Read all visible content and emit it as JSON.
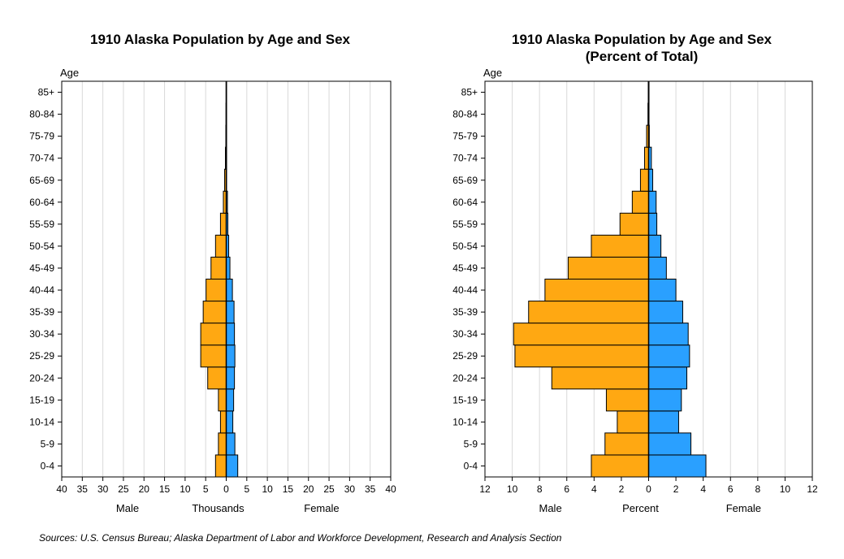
{
  "source_note": "Sources: U.S. Census Bureau; Alaska Department of Labor and Workforce Development, Research and Analysis Section",
  "colors": {
    "male": "#FFA812",
    "female": "#2AA0FF",
    "grid": "#D9D9D9"
  },
  "chart_data": [
    {
      "type": "bar",
      "orientation": "horizontal-pyramid",
      "title": "1910 Alaska Population by Age and Sex",
      "title_line2": "",
      "ylabel": "Age",
      "xlabel_left": "Male",
      "xlabel_center": "Thousands",
      "xlabel_right": "Female",
      "xlim": [
        -40,
        40
      ],
      "xticks": [
        40,
        35,
        30,
        25,
        20,
        15,
        10,
        5,
        0,
        5,
        10,
        15,
        20,
        25,
        30,
        35,
        40
      ],
      "categories": [
        "0-4",
        "5-9",
        "10-14",
        "15-19",
        "20-24",
        "25-29",
        "30-34",
        "35-39",
        "40-44",
        "45-49",
        "50-54",
        "55-59",
        "60-64",
        "65-69",
        "70-74",
        "75-79",
        "80-84",
        "85+"
      ],
      "series": [
        {
          "name": "Male",
          "values": [
            2.6,
            1.9,
            1.4,
            1.9,
            4.5,
            6.2,
            6.2,
            5.6,
            4.9,
            3.7,
            2.6,
            1.4,
            0.7,
            0.4,
            0.2,
            0.1,
            0.05,
            0.02
          ]
        },
        {
          "name": "Female",
          "values": [
            2.8,
            2.1,
            1.6,
            1.8,
            2.0,
            2.1,
            2.0,
            1.9,
            1.5,
            0.9,
            0.6,
            0.4,
            0.3,
            0.1,
            0.05,
            0.02,
            0.01,
            0.01
          ]
        }
      ]
    },
    {
      "type": "bar",
      "orientation": "horizontal-pyramid",
      "title": "1910 Alaska Population by Age and Sex",
      "title_line2": "(Percent of Total)",
      "ylabel": "Age",
      "xlabel_left": "Male",
      "xlabel_center": "Percent",
      "xlabel_right": "Female",
      "xlim": [
        -12,
        12
      ],
      "xticks": [
        12,
        10,
        8,
        6,
        4,
        2,
        0,
        2,
        4,
        6,
        8,
        10,
        12
      ],
      "categories": [
        "0-4",
        "5-9",
        "10-14",
        "15-19",
        "20-24",
        "25-29",
        "30-34",
        "35-39",
        "40-44",
        "45-49",
        "50-54",
        "55-59",
        "60-64",
        "65-69",
        "70-74",
        "75-79",
        "80-84",
        "85+"
      ],
      "series": [
        {
          "name": "Male",
          "values": [
            4.2,
            3.2,
            2.3,
            3.1,
            7.1,
            9.8,
            9.9,
            8.8,
            7.6,
            5.9,
            4.2,
            2.1,
            1.2,
            0.6,
            0.3,
            0.15,
            0.05,
            0.03
          ]
        },
        {
          "name": "Female",
          "values": [
            4.2,
            3.1,
            2.2,
            2.4,
            2.8,
            3.0,
            2.9,
            2.5,
            2.0,
            1.3,
            0.9,
            0.6,
            0.55,
            0.3,
            0.2,
            0.05,
            0.03,
            0.02
          ]
        }
      ]
    }
  ]
}
